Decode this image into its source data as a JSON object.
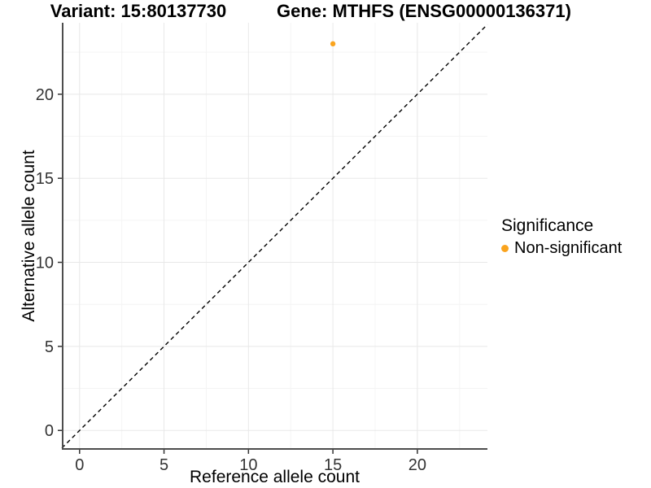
{
  "titles": {
    "variant": "Variant: 15:80137730",
    "gene": "Gene: MTHFS (ENSG00000136371)"
  },
  "chart_data": {
    "type": "scatter",
    "title_left": "Variant: 15:80137730",
    "title_right": "Gene: MTHFS (ENSG00000136371)",
    "xlabel": "Reference allele count",
    "ylabel": "Alternative allele count",
    "xlim": [
      -1.05,
      24.15
    ],
    "ylim": [
      -1.15,
      24.25
    ],
    "x_major_ticks": [
      0,
      5,
      10,
      15,
      20
    ],
    "y_major_ticks": [
      0,
      5,
      10,
      15,
      20
    ],
    "x_minor_ticks": [
      2.5,
      7.5,
      12.5,
      17.5,
      22.5
    ],
    "y_minor_ticks": [
      2.5,
      7.5,
      12.5,
      17.5,
      22.5
    ],
    "grid": true,
    "identity_line": {
      "style": "dashed",
      "from": -1.05,
      "to": 24.15
    },
    "points": [
      {
        "x": 15,
        "y": 23,
        "significance": "Non-significant"
      }
    ],
    "legend": {
      "title": "Significance",
      "position": "right",
      "entries": [
        {
          "label": "Non-significant",
          "color": "#FAA41E"
        }
      ]
    }
  },
  "legend": {
    "title": "Significance",
    "entry_label": "Non-significant"
  },
  "colors": {
    "point": "#FAA41E",
    "grid_major": "#E8E8E8",
    "grid_minor": "#F4F4F4",
    "axis_line": "#4D4D4D",
    "tick_mark": "#333333",
    "identity_line": "#000000"
  }
}
